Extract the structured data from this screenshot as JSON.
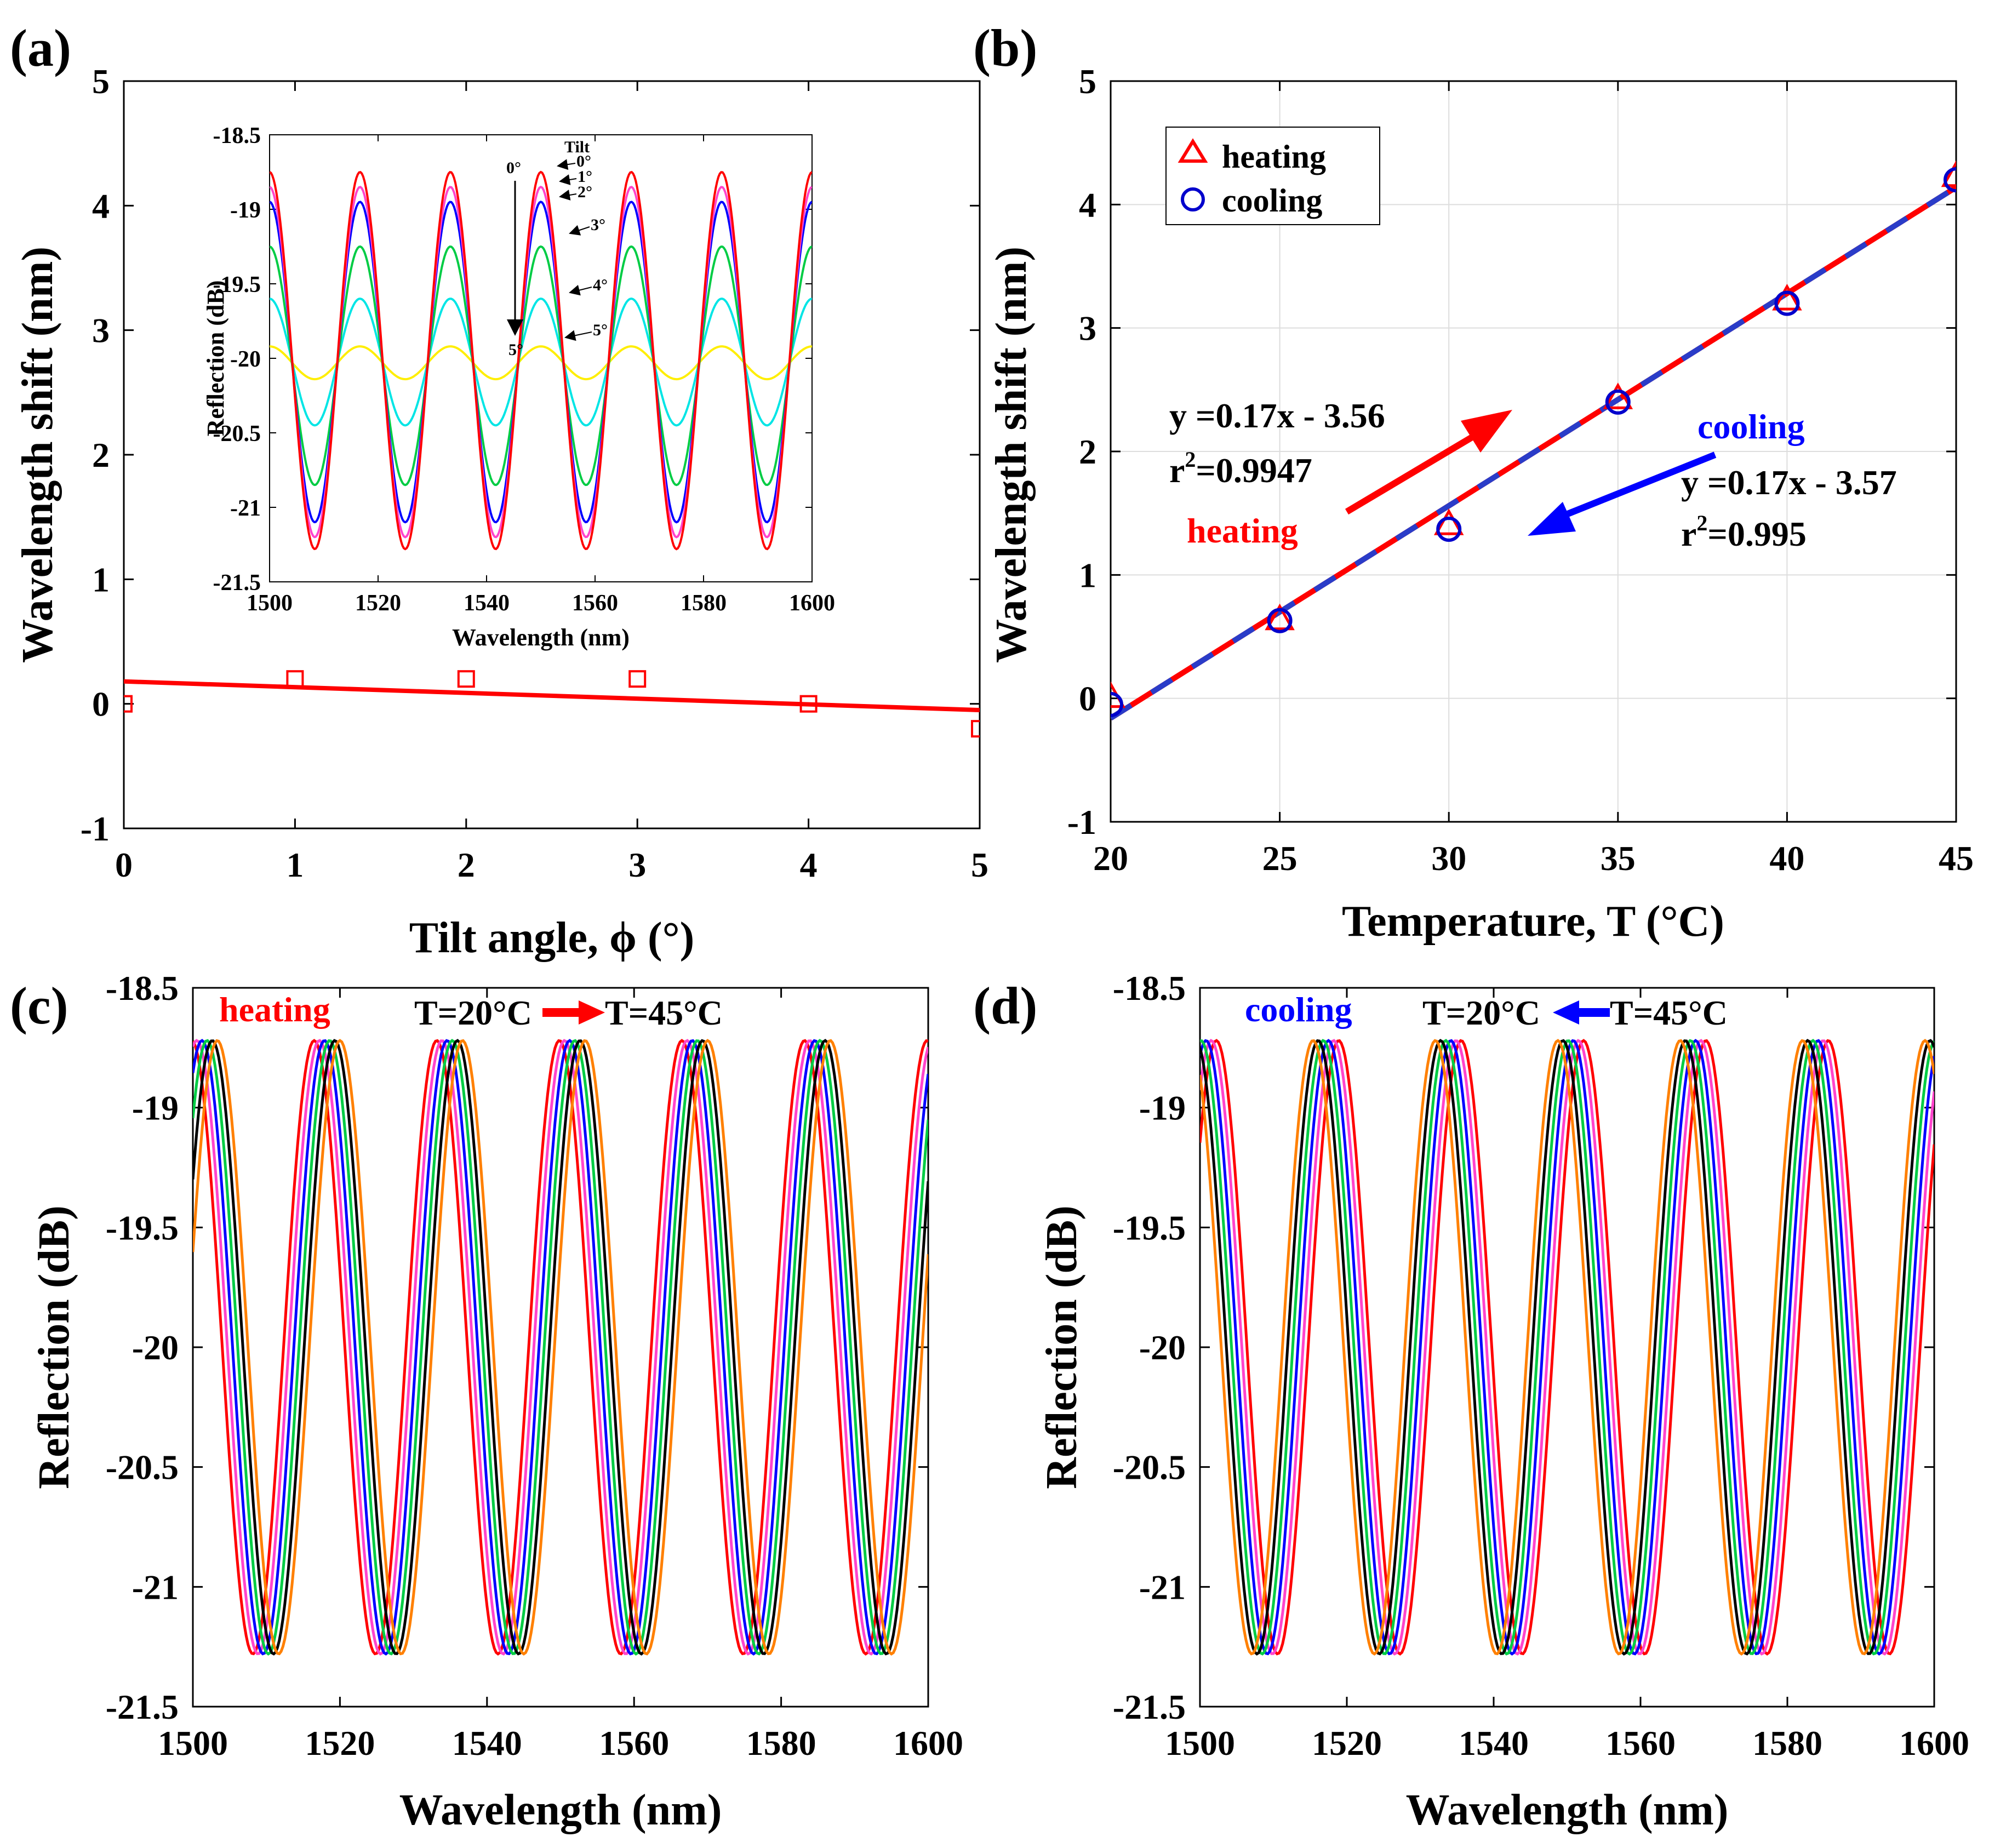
{
  "chart_data": [
    {
      "id": "a",
      "panel_label": "(a)",
      "type": "scatter",
      "xlabel": "Tilt angle, ϕ (°)",
      "ylabel": "Wavelength shift (nm)",
      "xlim": [
        0,
        5
      ],
      "ylim": [
        -1,
        5
      ],
      "xticks": [
        0,
        1,
        2,
        3,
        4,
        5
      ],
      "yticks": [
        -1,
        0,
        1,
        2,
        3,
        4,
        5
      ],
      "grid": false,
      "series": [
        {
          "marker": "square",
          "color": "#ff0000",
          "x": [
            0,
            1,
            2,
            3,
            4,
            5
          ],
          "y": [
            0,
            0.2,
            0.2,
            0.2,
            0,
            -0.2
          ]
        }
      ],
      "fit": {
        "color": "#ff0000",
        "x": [
          0,
          5
        ],
        "y": [
          0.18,
          -0.05
        ]
      },
      "inset": {
        "type": "line",
        "xlabel": "Wavelength (nm)",
        "ylabel": "Reflection (dB)",
        "xlim": [
          1500,
          1600
        ],
        "ylim": [
          -21.5,
          -18.5
        ],
        "xticks": [
          1500,
          1520,
          1540,
          1560,
          1580,
          1600
        ],
        "yticks": [
          -21.5,
          -21,
          -20.5,
          -20,
          -19.5,
          -19,
          -18.5
        ],
        "legend_title": "Tilt",
        "arrow_top_label": "0°",
        "arrow_bottom_label": "5°",
        "period_nm": 16.67,
        "peak_nm": 1500,
        "series": [
          {
            "name": "0°",
            "color": "#ff0000",
            "max": -18.75,
            "min": -21.28
          },
          {
            "name": "1°",
            "color": "#ff44cc",
            "max": -18.85,
            "min": -21.2
          },
          {
            "name": "2°",
            "color": "#0000ff",
            "max": -18.95,
            "min": -21.1
          },
          {
            "name": "3°",
            "color": "#00cc44",
            "max": -19.25,
            "min": -20.85
          },
          {
            "name": "4°",
            "color": "#00e5e5",
            "max": -19.6,
            "min": -20.45
          },
          {
            "name": "5°",
            "color": "#ffee00",
            "max": -19.92,
            "min": -20.14
          }
        ]
      }
    },
    {
      "id": "b",
      "panel_label": "(b)",
      "type": "scatter",
      "xlabel": "Temperature, T (°C)",
      "ylabel": "Wavelength shift (nm)",
      "xlim": [
        20,
        45
      ],
      "ylim": [
        -1,
        5
      ],
      "xticks": [
        20,
        25,
        30,
        35,
        40,
        45
      ],
      "yticks": [
        -1,
        0,
        1,
        2,
        3,
        4,
        5
      ],
      "grid": true,
      "legend": {
        "position": "top-left",
        "entries": [
          "heating",
          "cooling"
        ]
      },
      "series": [
        {
          "name": "heating",
          "marker": "triangle",
          "color": "#ff0000",
          "x": [
            20,
            25,
            30,
            35,
            40,
            45
          ],
          "y": [
            0,
            0.63,
            1.4,
            2.42,
            3.22,
            4.22
          ]
        },
        {
          "name": "cooling",
          "marker": "circle",
          "color": "#0000cc",
          "x": [
            20,
            25,
            30,
            35,
            40,
            45
          ],
          "y": [
            -0.05,
            0.63,
            1.37,
            2.4,
            3.2,
            4.2
          ]
        }
      ],
      "fit": {
        "x": [
          20,
          45
        ],
        "y": [
          -0.16,
          4.14
        ]
      },
      "annotations": {
        "heating_eq": "y =0.17x - 3.56",
        "heating_r2_prefix": "r",
        "heating_r2_exp": "2",
        "heating_r2_value": "=0.9947",
        "heating_word": "heating",
        "cooling_word": "cooling",
        "cooling_eq": "y =0.17x - 3.57",
        "cooling_r2_prefix": "r",
        "cooling_r2_exp": "2",
        "cooling_r2_value": "=0.995"
      }
    },
    {
      "id": "c",
      "panel_label": "(c)",
      "type": "line",
      "xlabel": "Wavelength (nm)",
      "ylabel": "Reflection (dB)",
      "xlim": [
        1500,
        1600
      ],
      "ylim": [
        -21.5,
        -18.5
      ],
      "xticks": [
        1500,
        1520,
        1540,
        1560,
        1580,
        1600
      ],
      "yticks": [
        -21.5,
        -21,
        -20.5,
        -20,
        -19.5,
        -19,
        -18.5
      ],
      "grid": false,
      "annotation_word": "heating",
      "annotation_word_color": "#ff0000",
      "annotation_from": "T=20°C",
      "annotation_to": "T=45°C",
      "annotation_arrow_color": "#ff0000",
      "annotation_arrow_dir": "right",
      "period_nm": 16.67,
      "max_db": -18.72,
      "min_db": -21.28,
      "series_colors": [
        "#ff0000",
        "#ff44cc",
        "#0000ff",
        "#00cc44",
        "#000000",
        "#ff8000"
      ],
      "series_peak_nm": [
        1516.5,
        1517.2,
        1517.9,
        1518.6,
        1519.3,
        1520.0
      ]
    },
    {
      "id": "d",
      "panel_label": "(d)",
      "type": "line",
      "xlabel": "Wavelength (nm)",
      "ylabel": "Reflection (dB)",
      "xlim": [
        1500,
        1600
      ],
      "ylim": [
        -21.5,
        -18.5
      ],
      "xticks": [
        1500,
        1520,
        1540,
        1560,
        1580,
        1600
      ],
      "yticks": [
        -21.5,
        -21,
        -20.5,
        -20,
        -19.5,
        -19,
        -18.5
      ],
      "grid": false,
      "annotation_word": "cooling",
      "annotation_word_color": "#0000ff",
      "annotation_from": "T=20°C",
      "annotation_to": "T=45°C",
      "annotation_arrow_color": "#0000ff",
      "annotation_arrow_dir": "left",
      "period_nm": 16.67,
      "max_db": -18.72,
      "min_db": -21.28,
      "series_colors": [
        "#ff0000",
        "#ff44cc",
        "#0000ff",
        "#00cc44",
        "#000000",
        "#ff8000"
      ],
      "series_peak_nm": [
        1518.9,
        1518.2,
        1517.5,
        1516.8,
        1516.1,
        1515.4
      ]
    }
  ]
}
